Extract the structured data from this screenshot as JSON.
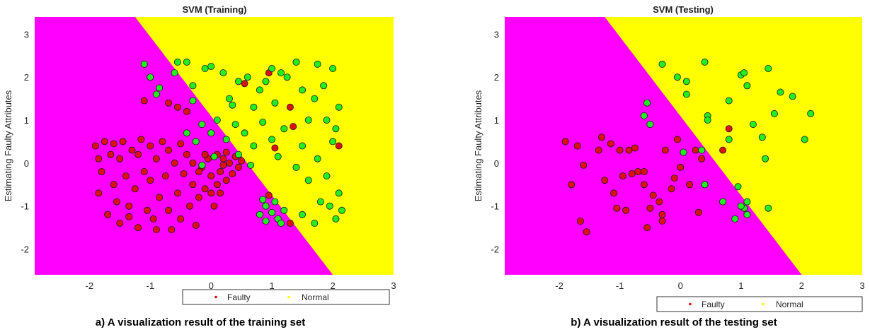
{
  "colors": {
    "faulty_region": "#ff00ff",
    "normal_region": "#ffff00",
    "faulty_point": "#dd1111",
    "normal_point": "#22ee22",
    "point_edge": "#1a1a1a"
  },
  "chart_data": [
    {
      "type": "scatter",
      "title": "SVM (Training)",
      "ylabel": "Estimating Faulty Attributes",
      "xlabel": "",
      "caption": "a) A visualization result of the training set",
      "xlim": [
        -2.9,
        3.0
      ],
      "ylim": [
        -2.6,
        3.4
      ],
      "xticks": [
        -2,
        -1,
        0,
        1,
        2,
        3
      ],
      "yticks": [
        -2,
        -1,
        0,
        1,
        2,
        3
      ],
      "decision_boundary": [
        [
          -1.25,
          3.4
        ],
        [
          2.0,
          -2.6
        ]
      ],
      "legend": {
        "position": "bottom",
        "entries": [
          "Faulty",
          "Normal"
        ]
      },
      "series": [
        {
          "name": "Faulty",
          "color": "#dd1111",
          "points": [
            [
              -1.9,
              0.4
            ],
            [
              -1.85,
              0.1
            ],
            [
              -1.8,
              -0.2
            ],
            [
              -1.85,
              -0.7
            ],
            [
              -1.75,
              0.5
            ],
            [
              -1.7,
              -1.2
            ],
            [
              -1.65,
              0.2
            ],
            [
              -1.6,
              -0.5
            ],
            [
              -1.6,
              0.45
            ],
            [
              -1.55,
              -0.9
            ],
            [
              -1.5,
              0.1
            ],
            [
              -1.5,
              -1.4
            ],
            [
              -1.45,
              0.5
            ],
            [
              -1.4,
              -0.3
            ],
            [
              -1.35,
              -1.0
            ],
            [
              -1.3,
              0.3
            ],
            [
              -1.25,
              -0.6
            ],
            [
              -1.2,
              0.2
            ],
            [
              -1.2,
              -1.5
            ],
            [
              -1.15,
              0.55
            ],
            [
              -1.1,
              -0.2
            ],
            [
              -1.05,
              -1.1
            ],
            [
              -1.0,
              0.4
            ],
            [
              -1.0,
              -0.4
            ],
            [
              -0.95,
              -1.3
            ],
            [
              -0.9,
              0.1
            ],
            [
              -0.85,
              -0.8
            ],
            [
              -0.8,
              0.5
            ],
            [
              -0.75,
              -0.3
            ],
            [
              -0.7,
              -1.1
            ],
            [
              -0.7,
              0.3
            ],
            [
              -0.65,
              -1.55
            ],
            [
              -0.6,
              0.0
            ],
            [
              -0.55,
              -0.7
            ],
            [
              -0.5,
              0.45
            ],
            [
              -0.5,
              -1.3
            ],
            [
              -0.45,
              -0.25
            ],
            [
              -0.4,
              0.2
            ],
            [
              -0.35,
              -1.0
            ],
            [
              -0.3,
              -0.5
            ],
            [
              -0.3,
              0.0
            ],
            [
              -0.25,
              -1.45
            ],
            [
              -0.2,
              -0.8
            ],
            [
              -0.15,
              -0.1
            ],
            [
              -0.1,
              -0.6
            ],
            [
              -0.05,
              0.1
            ],
            [
              0.0,
              -0.3
            ],
            [
              0.05,
              -1.0
            ],
            [
              0.1,
              0.2
            ],
            [
              0.1,
              -0.5
            ],
            [
              0.15,
              -0.2
            ],
            [
              0.2,
              0.1
            ],
            [
              0.25,
              -0.4
            ],
            [
              0.3,
              0.0
            ],
            [
              0.35,
              -0.25
            ],
            [
              0.4,
              0.15
            ],
            [
              0.45,
              -0.1
            ],
            [
              0.5,
              0.05
            ],
            [
              -1.1,
              1.45
            ],
            [
              -0.7,
              1.4
            ],
            [
              -0.55,
              1.3
            ],
            [
              -0.4,
              1.2
            ],
            [
              -0.9,
              -1.55
            ],
            [
              -1.35,
              -1.25
            ],
            [
              -0.2,
              -0.2
            ],
            [
              0.0,
              -0.7
            ],
            [
              0.15,
              -0.7
            ],
            [
              -0.1,
              0.2
            ],
            [
              0.25,
              0.25
            ],
            [
              0.2,
              -0.05
            ],
            [
              0.55,
              1.85
            ],
            [
              0.95,
              2.1
            ],
            [
              1.35,
              0.85
            ],
            [
              1.3,
              1.3
            ],
            [
              1.05,
              0.35
            ],
            [
              0.95,
              -0.75
            ],
            [
              1.3,
              -1.4
            ],
            [
              2.1,
              0.4
            ]
          ]
        },
        {
          "name": "Normal",
          "color": "#22ee22",
          "points": [
            [
              -1.1,
              2.3
            ],
            [
              -1.0,
              2.0
            ],
            [
              -0.9,
              1.6
            ],
            [
              -0.6,
              2.1
            ],
            [
              -0.55,
              2.35
            ],
            [
              -0.4,
              2.35
            ],
            [
              -0.3,
              1.8
            ],
            [
              -0.1,
              2.2
            ],
            [
              0.0,
              2.25
            ],
            [
              0.2,
              2.1
            ],
            [
              0.3,
              1.5
            ],
            [
              0.45,
              1.9
            ],
            [
              0.6,
              2.0
            ],
            [
              0.7,
              1.3
            ],
            [
              0.8,
              1.7
            ],
            [
              0.9,
              1.9
            ],
            [
              1.0,
              2.2
            ],
            [
              1.05,
              1.4
            ],
            [
              1.15,
              2.1
            ],
            [
              1.25,
              2.0
            ],
            [
              1.4,
              2.35
            ],
            [
              1.5,
              1.7
            ],
            [
              1.6,
              1.0
            ],
            [
              1.7,
              1.5
            ],
            [
              1.75,
              2.3
            ],
            [
              1.85,
              1.8
            ],
            [
              1.9,
              1.0
            ],
            [
              2.0,
              2.2
            ],
            [
              2.05,
              0.8
            ],
            [
              2.1,
              1.3
            ],
            [
              -0.25,
              0.5
            ],
            [
              -0.15,
              0.9
            ],
            [
              0.0,
              0.7
            ],
            [
              0.1,
              1.0
            ],
            [
              0.25,
              0.55
            ],
            [
              0.4,
              0.9
            ],
            [
              0.55,
              0.7
            ],
            [
              0.7,
              0.4
            ],
            [
              0.85,
              0.95
            ],
            [
              1.0,
              0.55
            ],
            [
              1.1,
              0.15
            ],
            [
              1.2,
              0.8
            ],
            [
              1.4,
              -0.1
            ],
            [
              1.5,
              0.4
            ],
            [
              1.6,
              -0.4
            ],
            [
              1.75,
              0.1
            ],
            [
              1.8,
              -0.9
            ],
            [
              1.9,
              -0.3
            ],
            [
              2.0,
              0.5
            ],
            [
              2.1,
              -0.7
            ],
            [
              2.15,
              -1.1
            ],
            [
              1.5,
              -1.2
            ],
            [
              1.7,
              -1.4
            ],
            [
              1.95,
              -1.0
            ],
            [
              2.05,
              -1.3
            ],
            [
              0.9,
              -1.0
            ],
            [
              0.8,
              -1.2
            ],
            [
              0.9,
              -1.35
            ],
            [
              1.0,
              -1.15
            ],
            [
              1.05,
              -0.9
            ],
            [
              1.1,
              -1.3
            ],
            [
              1.2,
              -1.1
            ],
            [
              0.85,
              -0.85
            ],
            [
              1.15,
              -1.4
            ],
            [
              -0.85,
              1.75
            ],
            [
              -0.3,
              1.45
            ],
            [
              0.35,
              1.35
            ],
            [
              0.65,
              -0.05
            ],
            [
              -0.4,
              0.7
            ],
            [
              -0.15,
              -0.05
            ],
            [
              0.05,
              0.15
            ],
            [
              0.45,
              0.2
            ]
          ]
        }
      ]
    },
    {
      "type": "scatter",
      "title": "SVM (Testing)",
      "ylabel": "Estimating Faulty Attributes",
      "xlabel": "",
      "caption": "b) A visualization result of the testing set",
      "xlim": [
        -2.9,
        3.0
      ],
      "ylim": [
        -2.6,
        3.4
      ],
      "xticks": [
        -2,
        -1,
        0,
        1,
        2,
        3
      ],
      "yticks": [
        -2,
        -1,
        0,
        1,
        2,
        3
      ],
      "decision_boundary": [
        [
          -1.25,
          3.4
        ],
        [
          2.0,
          -2.6
        ]
      ],
      "legend": {
        "position": "bottom",
        "entries": [
          "Faulty",
          "Normal"
        ]
      },
      "series": [
        {
          "name": "Faulty",
          "color": "#dd1111",
          "points": [
            [
              -1.9,
              0.5
            ],
            [
              -1.8,
              -0.5
            ],
            [
              -1.7,
              0.4
            ],
            [
              -1.6,
              -0.05
            ],
            [
              -1.55,
              -1.6
            ],
            [
              -1.65,
              -1.35
            ],
            [
              -1.3,
              0.6
            ],
            [
              -1.25,
              -0.4
            ],
            [
              -1.15,
              0.45
            ],
            [
              -1.1,
              -0.7
            ],
            [
              -1.05,
              -1.05
            ],
            [
              -1.0,
              0.3
            ],
            [
              -0.95,
              -0.3
            ],
            [
              -0.9,
              -1.1
            ],
            [
              -0.85,
              0.3
            ],
            [
              -0.8,
              -0.25
            ],
            [
              -0.75,
              0.35
            ],
            [
              -0.7,
              -0.2
            ],
            [
              -0.6,
              -0.5
            ],
            [
              -0.55,
              -1.5
            ],
            [
              -0.5,
              -1.05
            ],
            [
              -0.45,
              -0.75
            ],
            [
              -0.35,
              -0.9
            ],
            [
              -0.3,
              -1.2
            ],
            [
              -0.3,
              -1.35
            ],
            [
              -0.25,
              0.3
            ],
            [
              -0.15,
              -0.6
            ],
            [
              -0.1,
              -0.35
            ],
            [
              -0.05,
              0.55
            ],
            [
              0.0,
              -0.1
            ],
            [
              0.05,
              0.25
            ],
            [
              0.15,
              -0.5
            ],
            [
              0.25,
              0.3
            ],
            [
              0.3,
              -1.15
            ],
            [
              0.35,
              0.1
            ],
            [
              0.4,
              -0.5
            ],
            [
              0.7,
              0.3
            ],
            [
              0.8,
              0.8
            ],
            [
              -1.35,
              0.3
            ],
            [
              -0.6,
              -0.2
            ]
          ]
        },
        {
          "name": "Normal",
          "color": "#22ee22",
          "points": [
            [
              -0.3,
              2.3
            ],
            [
              -0.05,
              2.0
            ],
            [
              0.1,
              1.6
            ],
            [
              0.1,
              1.9
            ],
            [
              0.4,
              2.35
            ],
            [
              0.45,
              1.1
            ],
            [
              0.45,
              1.0
            ],
            [
              0.8,
              1.45
            ],
            [
              1.0,
              2.05
            ],
            [
              1.05,
              2.1
            ],
            [
              1.1,
              1.8
            ],
            [
              1.2,
              0.9
            ],
            [
              1.45,
              2.2
            ],
            [
              1.55,
              1.15
            ],
            [
              1.65,
              1.65
            ],
            [
              1.85,
              1.55
            ],
            [
              2.05,
              0.55
            ],
            [
              2.15,
              1.15
            ],
            [
              1.4,
              0.1
            ],
            [
              1.45,
              -1.05
            ],
            [
              1.05,
              -1.05
            ],
            [
              1.1,
              -0.9
            ],
            [
              1.1,
              -1.2
            ],
            [
              1.0,
              -1.0
            ],
            [
              0.95,
              -0.55
            ],
            [
              0.7,
              -0.9
            ],
            [
              0.4,
              -0.5
            ],
            [
              0.35,
              0.3
            ],
            [
              0.05,
              0.25
            ],
            [
              -0.6,
              1.1
            ],
            [
              -0.55,
              1.4
            ],
            [
              -0.5,
              0.9
            ],
            [
              0.8,
              0.55
            ],
            [
              0.9,
              -1.3
            ],
            [
              1.35,
              0.6
            ]
          ]
        }
      ]
    }
  ]
}
